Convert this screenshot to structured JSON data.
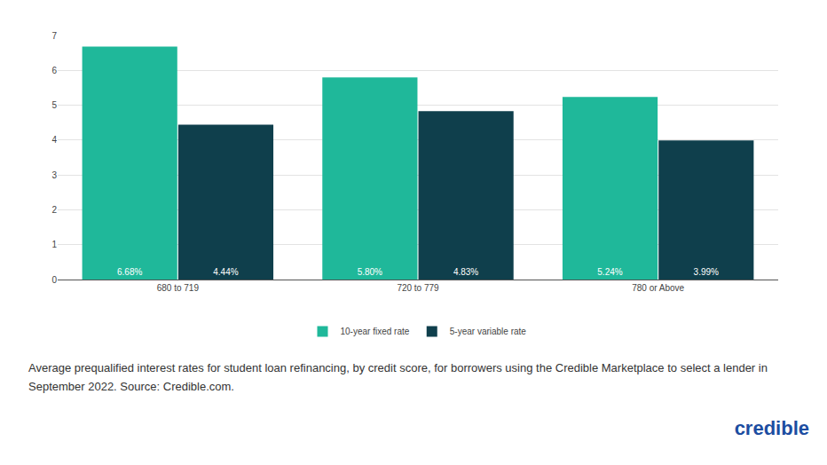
{
  "chart_data": {
    "type": "bar",
    "categories": [
      "680 to 719",
      "720 to 779",
      "780 or Above"
    ],
    "series": [
      {
        "name": "10-year fixed rate",
        "color": "#1fb89a",
        "values": [
          6.68,
          5.8,
          5.24
        ],
        "value_labels": [
          "6.68%",
          "5.80%",
          "5.24%"
        ]
      },
      {
        "name": "5-year variable rate",
        "color": "#0f3f4c",
        "values": [
          4.44,
          4.83,
          3.99
        ],
        "value_labels": [
          "4.44%",
          "4.83%",
          "3.99%"
        ]
      }
    ],
    "ylim": [
      0,
      7
    ],
    "yticks": [
      0,
      1,
      2,
      3,
      4,
      5,
      6,
      7
    ],
    "grid": true,
    "legend": "bottom",
    "data_labels": true,
    "annotations": [
      "Average prequalified interest rates for student loan refinancing, by credit score, for borrowers using the Credible Marketplace to select a lender in September 2022. Source: Credible.com.",
      "credible"
    ]
  }
}
